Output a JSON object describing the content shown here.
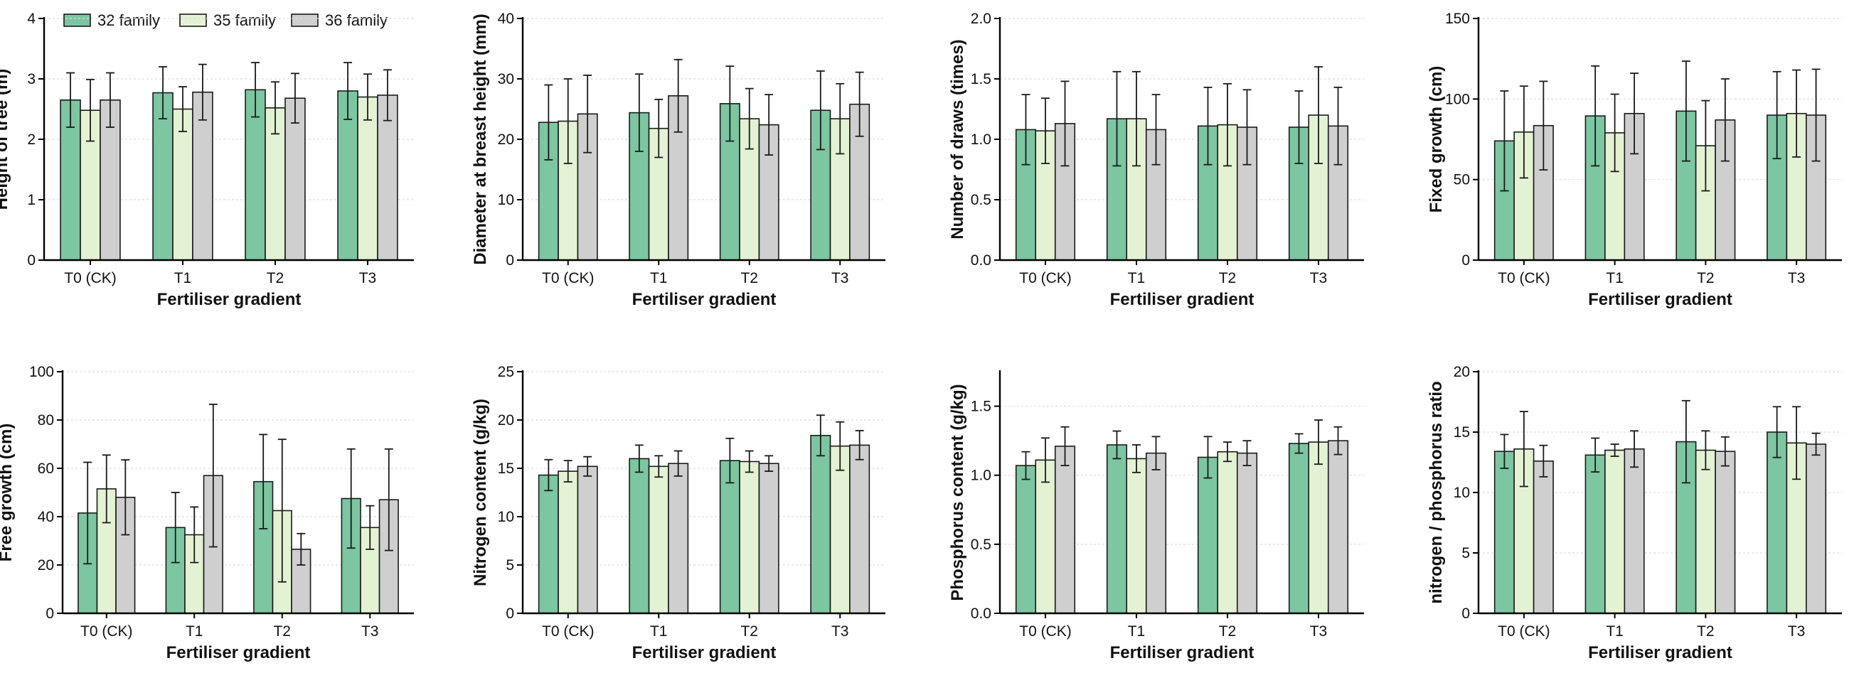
{
  "colors": {
    "32 family": "#7cc6a1",
    "35 family": "#e4f2d4",
    "36 family": "#cfcfcf"
  },
  "legend": [
    "32 family",
    "35 family",
    "36 family"
  ],
  "chart_data": [
    {
      "type": "bar",
      "xlabel": "Fertiliser gradient",
      "ylabel": "Height of tree (m)",
      "categories": [
        "T0 (CK)",
        "T1",
        "T2",
        "T3"
      ],
      "ylim": [
        0,
        4
      ],
      "yticks": [
        "0",
        "1",
        "2",
        "3",
        "4"
      ],
      "ytick_values": [
        0,
        1,
        2,
        3,
        4
      ],
      "series": [
        {
          "name": "32 family",
          "values": [
            2.65,
            2.77,
            2.82,
            2.8
          ],
          "errors": [
            0.45,
            0.43,
            0.45,
            0.47
          ]
        },
        {
          "name": "35 family",
          "values": [
            2.48,
            2.5,
            2.52,
            2.7
          ],
          "errors": [
            0.51,
            0.37,
            0.43,
            0.38
          ]
        },
        {
          "name": "36 family",
          "values": [
            2.65,
            2.78,
            2.68,
            2.73
          ],
          "errors": [
            0.45,
            0.46,
            0.41,
            0.42
          ]
        }
      ]
    },
    {
      "type": "bar",
      "xlabel": "Fertiliser gradient",
      "ylabel": "Diameter at breast height (mm)",
      "categories": [
        "T0 (CK)",
        "T1",
        "T2",
        "T3"
      ],
      "ylim": [
        0,
        40
      ],
      "yticks": [
        "0",
        "10",
        "20",
        "30",
        "40"
      ],
      "ytick_values": [
        0,
        10,
        20,
        30,
        40
      ],
      "series": [
        {
          "name": "32 family",
          "values": [
            22.8,
            24.4,
            25.9,
            24.8
          ],
          "errors": [
            6.2,
            6.4,
            6.2,
            6.5
          ]
        },
        {
          "name": "35 family",
          "values": [
            23.0,
            21.8,
            23.4,
            23.4
          ],
          "errors": [
            7.0,
            4.8,
            5.0,
            5.8
          ]
        },
        {
          "name": "36 family",
          "values": [
            24.2,
            27.2,
            22.4,
            25.8
          ],
          "errors": [
            6.4,
            6.0,
            5.0,
            5.3
          ]
        }
      ]
    },
    {
      "type": "bar",
      "xlabel": "Fertiliser gradient",
      "ylabel": "Number of draws (times)",
      "categories": [
        "T0 (CK)",
        "T1",
        "T2",
        "T3"
      ],
      "ylim": [
        0,
        2
      ],
      "yticks": [
        "0.0",
        "0.5",
        "1.0",
        "1.5",
        "2.0"
      ],
      "ytick_values": [
        0,
        0.5,
        1.0,
        1.5,
        2.0
      ],
      "series": [
        {
          "name": "32 family",
          "values": [
            1.08,
            1.17,
            1.11,
            1.1
          ],
          "errors": [
            0.29,
            0.39,
            0.32,
            0.3
          ]
        },
        {
          "name": "35 family",
          "values": [
            1.07,
            1.17,
            1.12,
            1.2
          ],
          "errors": [
            0.27,
            0.39,
            0.34,
            0.4
          ]
        },
        {
          "name": "36 family",
          "values": [
            1.13,
            1.08,
            1.1,
            1.11
          ],
          "errors": [
            0.35,
            0.29,
            0.31,
            0.32
          ]
        }
      ]
    },
    {
      "type": "bar",
      "xlabel": "Fertiliser gradient",
      "ylabel": "Fixed growth (cm)",
      "categories": [
        "T0 (CK)",
        "T1",
        "T2",
        "T3"
      ],
      "ylim": [
        0,
        150
      ],
      "yticks": [
        "0",
        "50",
        "100",
        "150"
      ],
      "ytick_values": [
        0,
        50,
        100,
        150
      ],
      "series": [
        {
          "name": "32 family",
          "values": [
            74,
            89.5,
            92.5,
            90
          ],
          "errors": [
            31,
            31,
            31,
            27
          ]
        },
        {
          "name": "35 family",
          "values": [
            79.5,
            79,
            71,
            91
          ],
          "errors": [
            28.5,
            24,
            28,
            27
          ]
        },
        {
          "name": "36 family",
          "values": [
            83.5,
            91,
            87,
            90
          ],
          "errors": [
            27.5,
            25,
            25.5,
            28.5
          ]
        }
      ]
    },
    {
      "type": "bar",
      "xlabel": "Fertiliser gradient",
      "ylabel": "Free growth (cm)",
      "categories": [
        "T0 (CK)",
        "T1",
        "T2",
        "T3"
      ],
      "ylim": [
        0,
        100
      ],
      "yticks": [
        "0",
        "20",
        "40",
        "60",
        "80",
        "100"
      ],
      "ytick_values": [
        0,
        20,
        40,
        60,
        80,
        100
      ],
      "series": [
        {
          "name": "32 family",
          "values": [
            41.5,
            35.5,
            54.5,
            47.5
          ],
          "errors": [
            21,
            14.5,
            19.5,
            20.5
          ]
        },
        {
          "name": "35 family",
          "values": [
            51.5,
            32.5,
            42.5,
            35.5
          ],
          "errors": [
            14,
            11.5,
            29.5,
            9
          ]
        },
        {
          "name": "36 family",
          "values": [
            48,
            57,
            26.5,
            47
          ],
          "errors": [
            15.5,
            29.5,
            6.5,
            21
          ]
        }
      ]
    },
    {
      "type": "bar",
      "xlabel": "Fertiliser gradient",
      "ylabel": "Nitrogen content (g/kg)",
      "categories": [
        "T0 (CK)",
        "T1",
        "T2",
        "T3"
      ],
      "ylim": [
        0,
        25
      ],
      "yticks": [
        "0",
        "5",
        "10",
        "15",
        "20",
        "25"
      ],
      "ytick_values": [
        0,
        5,
        10,
        15,
        20,
        25
      ],
      "series": [
        {
          "name": "32 family",
          "values": [
            14.3,
            16.0,
            15.8,
            18.4
          ],
          "errors": [
            1.6,
            1.4,
            2.3,
            2.1
          ]
        },
        {
          "name": "35 family",
          "values": [
            14.7,
            15.2,
            15.7,
            17.3
          ],
          "errors": [
            1.1,
            1.1,
            1.1,
            2.5
          ]
        },
        {
          "name": "36 family",
          "values": [
            15.2,
            15.5,
            15.5,
            17.4
          ],
          "errors": [
            1.0,
            1.3,
            0.8,
            1.5
          ]
        }
      ]
    },
    {
      "type": "bar",
      "xlabel": "Fertiliser gradient",
      "ylabel": "Phosphorus content (g/kg)",
      "categories": [
        "T0 (CK)",
        "T1",
        "T2",
        "T3"
      ],
      "ylim": [
        0,
        1.75
      ],
      "yticks": [
        "0.0",
        "0.5",
        "1.0",
        "1.5"
      ],
      "ytick_values": [
        0,
        0.5,
        1.0,
        1.5
      ],
      "series": [
        {
          "name": "32 family",
          "values": [
            1.07,
            1.22,
            1.13,
            1.23
          ],
          "errors": [
            0.1,
            0.1,
            0.15,
            0.07
          ]
        },
        {
          "name": "35 family",
          "values": [
            1.11,
            1.12,
            1.17,
            1.24
          ],
          "errors": [
            0.16,
            0.1,
            0.07,
            0.16
          ]
        },
        {
          "name": "36 family",
          "values": [
            1.21,
            1.16,
            1.16,
            1.25
          ],
          "errors": [
            0.14,
            0.12,
            0.09,
            0.1
          ]
        }
      ]
    },
    {
      "type": "bar",
      "xlabel": "Fertiliser gradient",
      "ylabel": "nitrogen / phosphorus ratio",
      "categories": [
        "T0 (CK)",
        "T1",
        "T2",
        "T3"
      ],
      "ylim": [
        0,
        20
      ],
      "yticks": [
        "0",
        "5",
        "10",
        "15",
        "20"
      ],
      "ytick_values": [
        0,
        5,
        10,
        15,
        20
      ],
      "series": [
        {
          "name": "32 family",
          "values": [
            13.4,
            13.1,
            14.2,
            15.0
          ],
          "errors": [
            1.4,
            1.4,
            3.4,
            2.1
          ]
        },
        {
          "name": "35 family",
          "values": [
            13.6,
            13.5,
            13.5,
            14.1
          ],
          "errors": [
            3.1,
            0.5,
            1.6,
            3.0
          ]
        },
        {
          "name": "36 family",
          "values": [
            12.6,
            13.6,
            13.4,
            14.0
          ],
          "errors": [
            1.3,
            1.5,
            1.2,
            0.9
          ]
        }
      ]
    }
  ]
}
